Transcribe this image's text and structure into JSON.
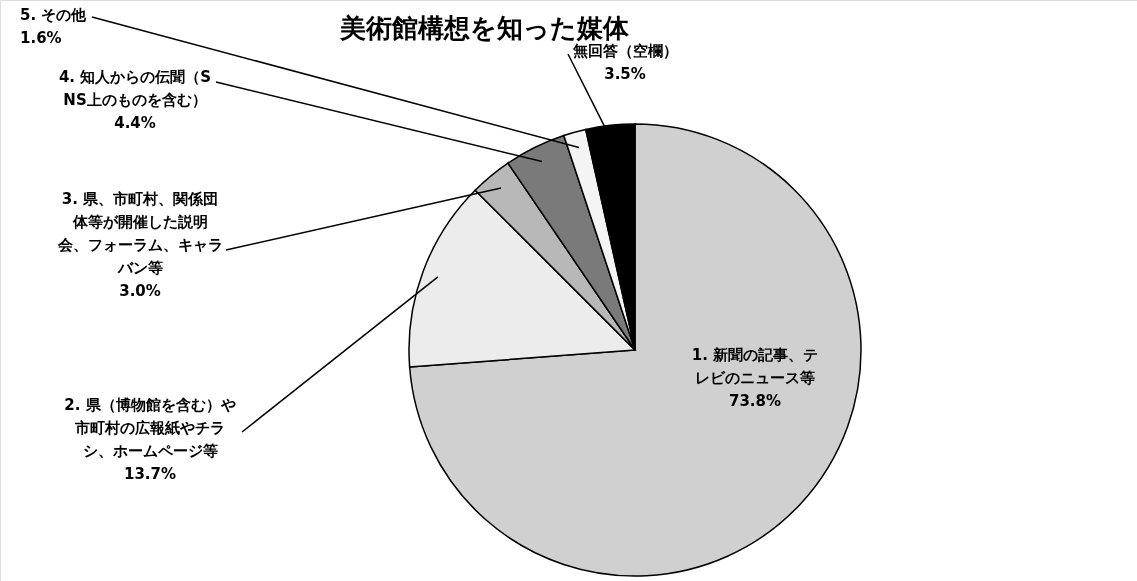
{
  "chart_data": {
    "type": "pie",
    "title": "美術館構想を知った媒体",
    "categories": [
      "1. 新聞の記事、テレビのニュース等",
      "2. 県（博物館を含む）や市町村の広報紙やチラシ、ホームページ等",
      "3. 県、市町村、関係団体等が開催した説明会、フォーラム、キャラバン等",
      "4. 知人からの伝聞（SNS上のものを含む）",
      "5. その他",
      "無回答（空欄）"
    ],
    "values": [
      73.8,
      13.7,
      3.0,
      4.4,
      1.6,
      3.5
    ],
    "value_labels": [
      "73.8%",
      "13.7%",
      "3.0%",
      "4.4%",
      "1.6%",
      "3.5%"
    ],
    "colors": [
      "#d0d0d0",
      "#ececec",
      "#b8b8b8",
      "#7a7a7a",
      "#f4f4f4",
      "#000000"
    ]
  }
}
